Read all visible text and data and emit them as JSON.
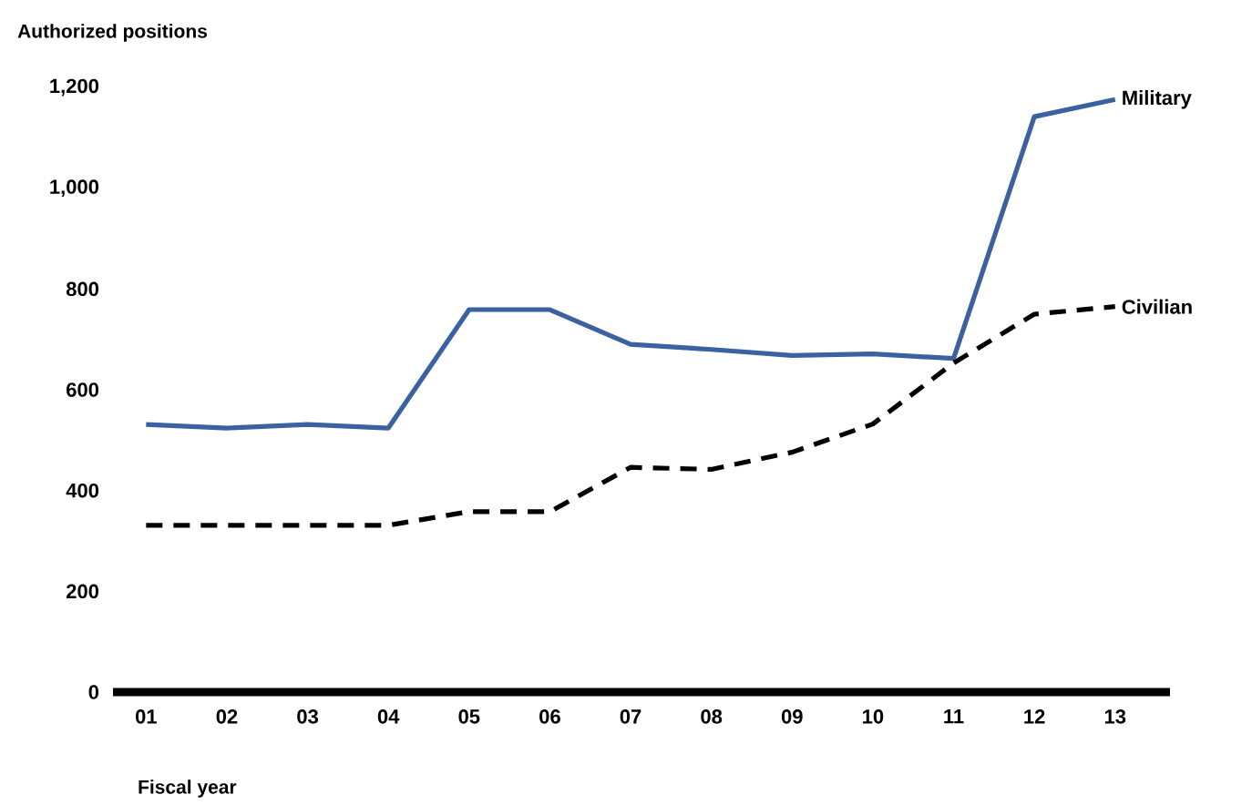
{
  "chart_data": {
    "type": "line",
    "title": "Authorized positions",
    "xlabel": "Fiscal year",
    "categories": [
      "01",
      "02",
      "03",
      "04",
      "05",
      "06",
      "07",
      "08",
      "09",
      "10",
      "11",
      "12",
      "13"
    ],
    "series": [
      {
        "name": "Military",
        "color": "#3a62a0",
        "line_style": "solid",
        "values": [
          531,
          524,
          531,
          524,
          759,
          759,
          690,
          680,
          668,
          671,
          662,
          1142,
          1176
        ]
      },
      {
        "name": "Civilian",
        "color": "#000000",
        "line_style": "dashed",
        "values": [
          331,
          331,
          331,
          331,
          358,
          358,
          446,
          442,
          476,
          532,
          653,
          750,
          765
        ]
      }
    ],
    "ylim": [
      0,
      1200
    ],
    "yticks": [
      0,
      200,
      400,
      600,
      800,
      {
        "value": 1000,
        "label": "1,000"
      },
      {
        "value": 1200,
        "label": "1,200"
      }
    ],
    "grid": false
  }
}
